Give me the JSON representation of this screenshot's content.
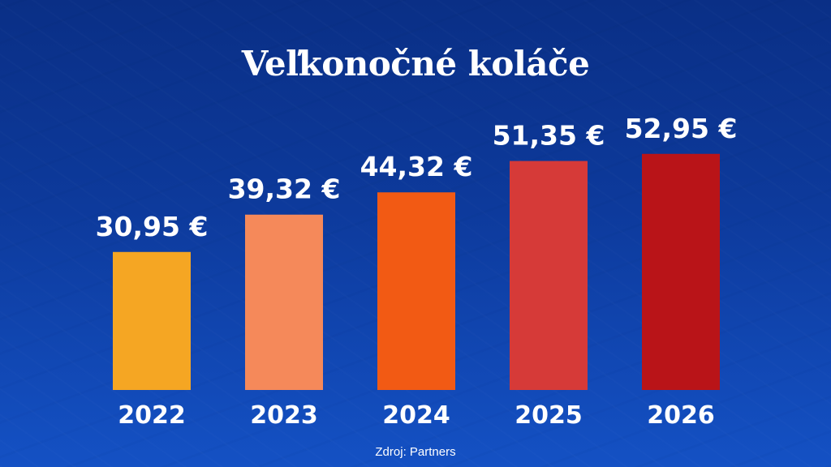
{
  "title": "Veľkonočné koláče",
  "source": "Zdroj: Partners",
  "chart_data": {
    "type": "bar",
    "title": "Veľkonočné koláče",
    "xlabel": "",
    "ylabel": "",
    "categories": [
      "2022",
      "2023",
      "2024",
      "2025",
      "2026"
    ],
    "values": [
      30.95,
      39.32,
      44.32,
      51.35,
      52.95
    ],
    "value_labels": [
      "30,95 €",
      "39,32 €",
      "44,32 €",
      "51,35 €",
      "52,95 €"
    ],
    "bar_colors": [
      "#f5a623",
      "#f5895a",
      "#f25a14",
      "#d63a38",
      "#b91418"
    ],
    "grid": false,
    "legend": "none"
  }
}
